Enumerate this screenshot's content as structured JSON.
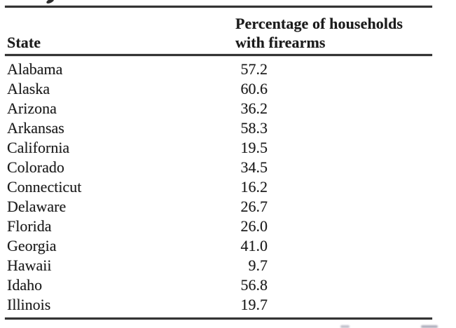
{
  "page": {
    "background": "#ffffff",
    "ink_color": "#1b1b1b",
    "rule_color": "#343434"
  },
  "table": {
    "col1_header": "State",
    "col2_header_line1": "Percentage of households",
    "col2_header_line2": "with firearms",
    "rows": [
      {
        "state": "Alabama",
        "value": "57.2"
      },
      {
        "state": "Alaska",
        "value": "60.6"
      },
      {
        "state": "Arizona",
        "value": "36.2"
      },
      {
        "state": "Arkansas",
        "value": "58.3"
      },
      {
        "state": "California",
        "value": "19.5"
      },
      {
        "state": "Colorado",
        "value": "34.5"
      },
      {
        "state": "Connecticut",
        "value": "16.2"
      },
      {
        "state": "Delaware",
        "value": "26.7"
      },
      {
        "state": "Florida",
        "value": "26.0"
      },
      {
        "state": "Georgia",
        "value": "41.0"
      },
      {
        "state": "Hawaii",
        "value": "9.7"
      },
      {
        "state": "Idaho",
        "value": "56.8"
      },
      {
        "state": "Illinois",
        "value": "19.7"
      }
    ]
  }
}
